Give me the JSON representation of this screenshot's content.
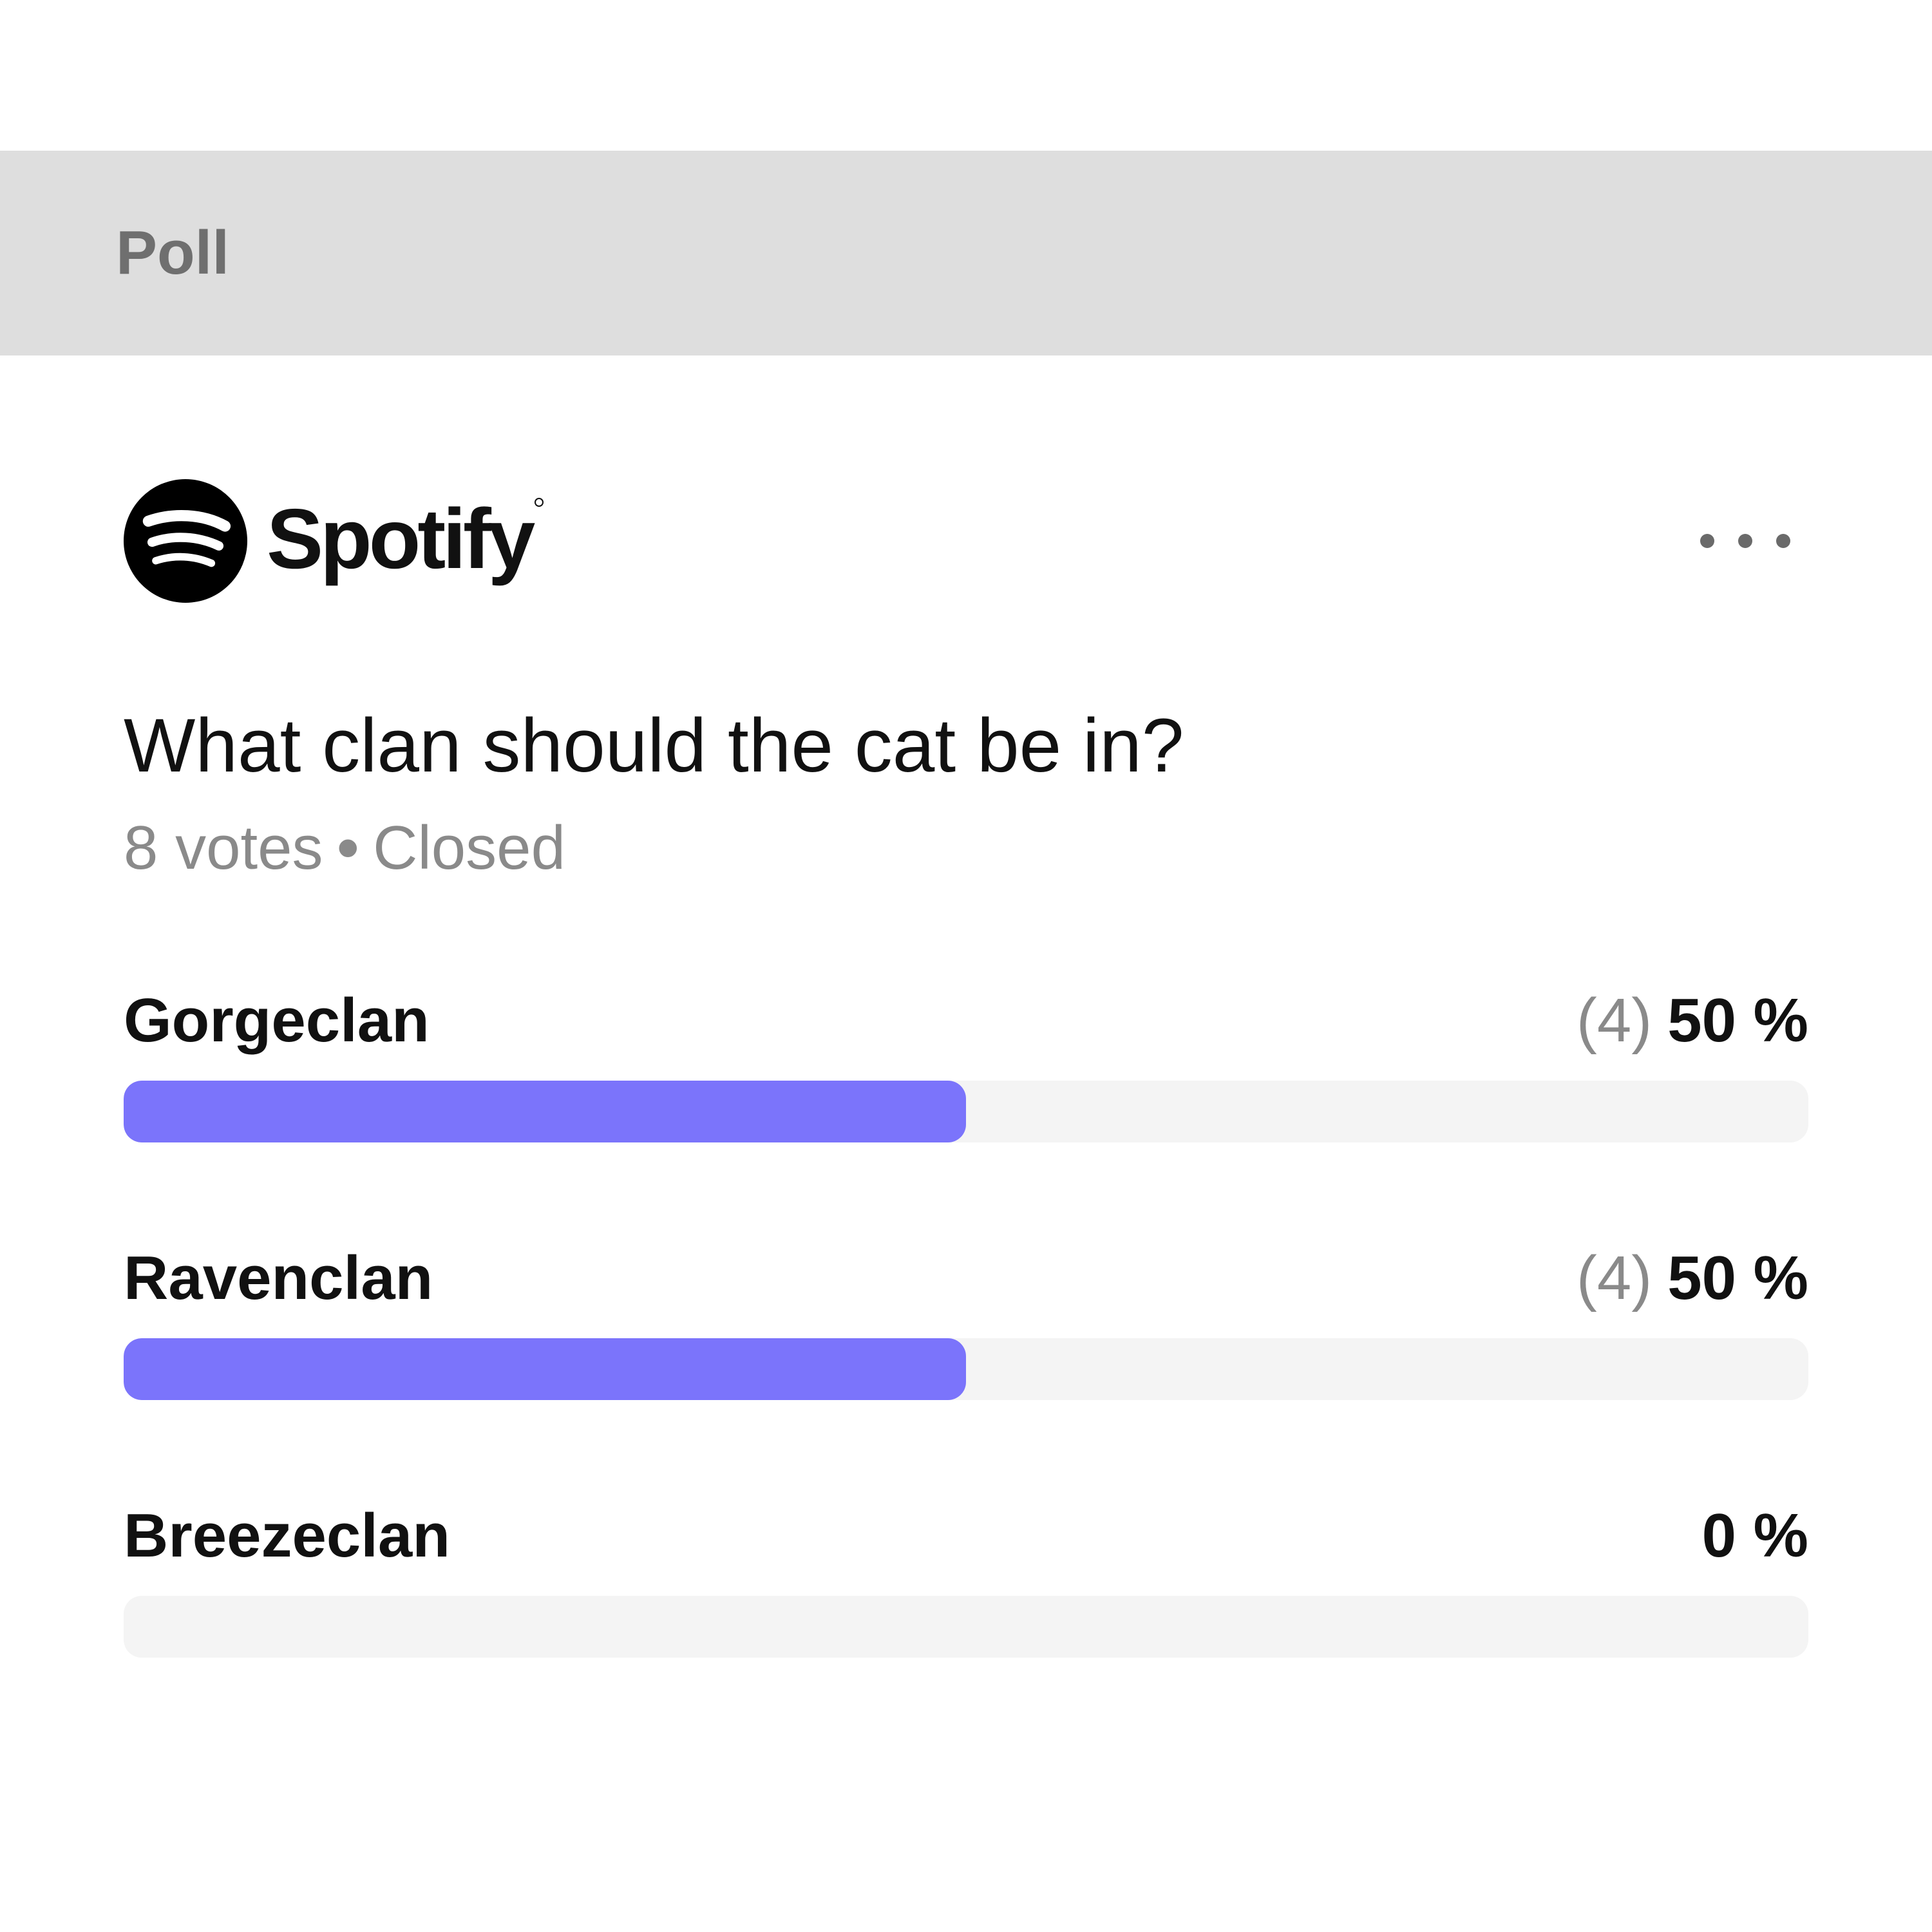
{
  "header": {
    "title": "Poll",
    "background": "#dedede"
  },
  "brand": {
    "name": "Spotify",
    "logo_icon": "spotify-logo-icon"
  },
  "more_button": {
    "icon": "more-horizontal-icon"
  },
  "poll": {
    "question": "What clan should the cat be in?",
    "votes_label": "8 votes",
    "separator": "•",
    "status": "Closed",
    "accent_color": "#7b74fb",
    "track_color": "#f4f4f4",
    "options": [
      {
        "label": "Gorgeclan",
        "count": "(4)",
        "percent": "50 %",
        "fraction": 0.5
      },
      {
        "label": "Ravenclan",
        "count": "(4)",
        "percent": "50 %",
        "fraction": 0.5
      },
      {
        "label": "Breezeclan",
        "count": "",
        "percent": "0 %",
        "fraction": 0
      }
    ]
  }
}
